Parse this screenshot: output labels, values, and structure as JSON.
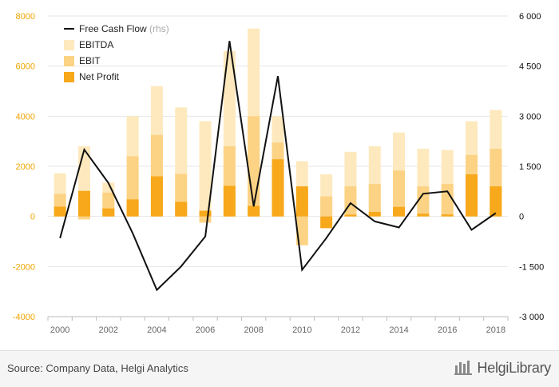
{
  "chart_data": {
    "type": "bar",
    "x": [
      "2000",
      "2001",
      "2002",
      "2003",
      "2004",
      "2005",
      "2006",
      "2007",
      "2008",
      "2009",
      "2010",
      "2011",
      "2012",
      "2013",
      "2014",
      "2015",
      "2016",
      "2017",
      "2018"
    ],
    "xtick_labels": [
      "2000",
      "2002",
      "2004",
      "2006",
      "2008",
      "2010",
      "2012",
      "2014",
      "2016",
      "2018"
    ],
    "ylim": [
      -4000,
      8000
    ],
    "y_ticks": [
      "8000",
      "6000",
      "4000",
      "2000",
      "0",
      "-2000",
      "-4000"
    ],
    "y2lim": [
      -3000,
      6000
    ],
    "y2_ticks": [
      "6 000",
      "4 500",
      "3 000",
      "1 500",
      "0",
      "-1 500",
      "-3 000"
    ],
    "series": [
      {
        "name": "EBITDA",
        "axis": "left",
        "type": "bar",
        "color": "#fde9bd",
        "values": [
          1720,
          2800,
          1350,
          4000,
          5200,
          4350,
          3800,
          6600,
          7500,
          4000,
          2200,
          1680,
          2580,
          2800,
          3350,
          2700,
          2650,
          3800,
          4250
        ]
      },
      {
        "name": "EBIT",
        "axis": "left",
        "type": "bar",
        "color": "#fcd384",
        "values": [
          900,
          -120,
          950,
          2400,
          3250,
          1700,
          -250,
          2800,
          4000,
          2950,
          -1150,
          800,
          1200,
          1300,
          1830,
          1200,
          1300,
          2450,
          2700
        ]
      },
      {
        "name": "Net Profit",
        "axis": "left",
        "type": "bar",
        "color": "#f7a81b",
        "values": [
          390,
          1020,
          320,
          680,
          1600,
          580,
          230,
          1220,
          420,
          2280,
          1200,
          -470,
          70,
          180,
          380,
          110,
          80,
          1680,
          1200
        ]
      },
      {
        "name": "Free Cash Flow",
        "suffix": "(rhs)",
        "axis": "right",
        "type": "line",
        "color": "#111111",
        "values": [
          -650,
          2000,
          1000,
          -500,
          -2200,
          -1500,
          -600,
          5250,
          300,
          4200,
          -1600,
          -650,
          400,
          -150,
          -330,
          680,
          750,
          -400,
          100
        ]
      }
    ]
  },
  "source": "Source: Company Data, Helgi Analytics",
  "brand": "HelgiLibrary",
  "colors": {
    "left_axis": "#f0a500",
    "right_axis": "#111111"
  }
}
